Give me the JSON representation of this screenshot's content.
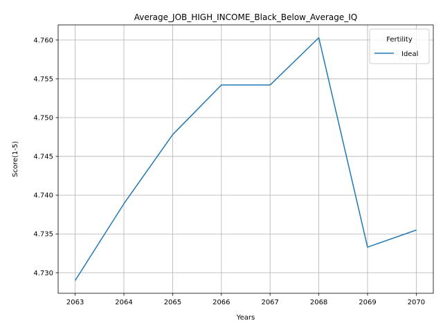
{
  "chart_data": {
    "type": "line",
    "title": "Average_JOB_HIGH_INCOME_Black_Below_Average_IQ",
    "xlabel": "Years",
    "ylabel": "Score(1-5)",
    "x": [
      2063,
      2064,
      2065,
      2066,
      2067,
      2068,
      2069,
      2070
    ],
    "series": [
      {
        "name": "Ideal",
        "color": "#1f77b4",
        "values": [
          4.729,
          4.7389,
          4.7478,
          4.7542,
          4.7542,
          4.7603,
          4.7333,
          4.7355
        ]
      }
    ],
    "xlim": [
      2062.65,
      2070.35
    ],
    "ylim": [
      4.72735,
      4.76195
    ],
    "xticks": [
      2063,
      2064,
      2065,
      2066,
      2067,
      2068,
      2069,
      2070
    ],
    "yticks": [
      "4.730",
      "4.735",
      "4.740",
      "4.745",
      "4.750",
      "4.755",
      "4.760"
    ],
    "grid": true,
    "legend": {
      "title": "Fertility",
      "placement": "top-right"
    }
  }
}
